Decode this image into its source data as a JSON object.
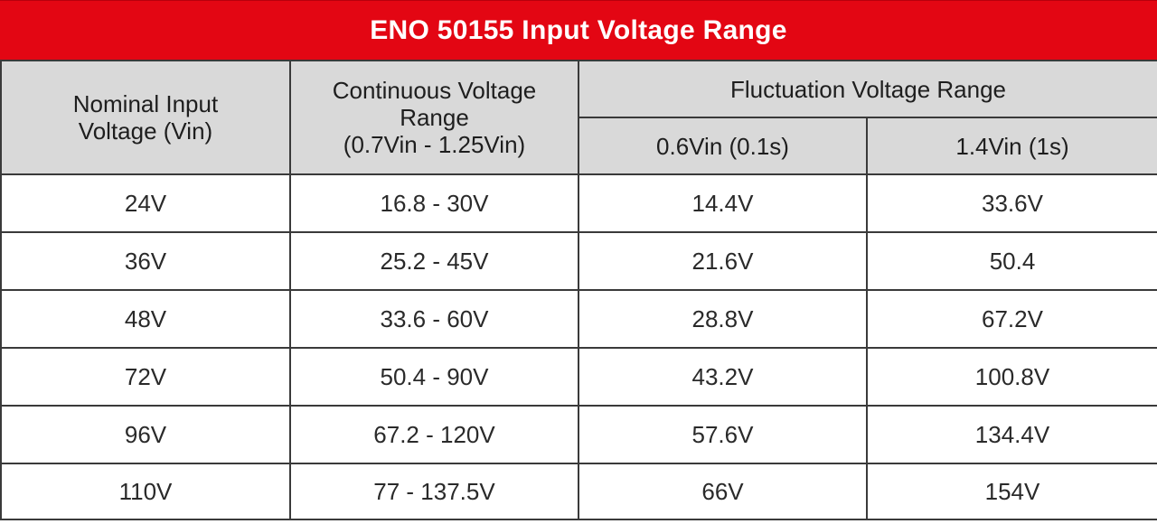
{
  "title": "ENO 50155 Input Voltage Range",
  "headers": {
    "nominal": [
      "Nominal Input",
      "Voltage (Vin)"
    ],
    "continuous": [
      "Continuous Voltage",
      "Range",
      "(0.7Vin - 1.25Vin)"
    ],
    "fluctuation": "Fluctuation Voltage Range",
    "low": "0.6Vin (0.1s)",
    "high": "1.4Vin (1s)"
  },
  "rows": [
    [
      "24V",
      "16.8 - 30V",
      "14.4V",
      "33.6V"
    ],
    [
      "36V",
      "25.2 - 45V",
      "21.6V",
      "50.4"
    ],
    [
      "48V",
      "33.6 - 60V",
      "28.8V",
      "67.2V"
    ],
    [
      "72V",
      "50.4 - 90V",
      "43.2V",
      "100.8V"
    ],
    [
      "96V",
      "67.2 - 120V",
      "57.6V",
      "134.4V"
    ],
    [
      "110V",
      "77 - 137.5V",
      "66V",
      "154V"
    ]
  ],
  "colors": {
    "title_bg": "#e30613",
    "header_bg": "#d9d9d9",
    "border": "#3a3a3a"
  }
}
